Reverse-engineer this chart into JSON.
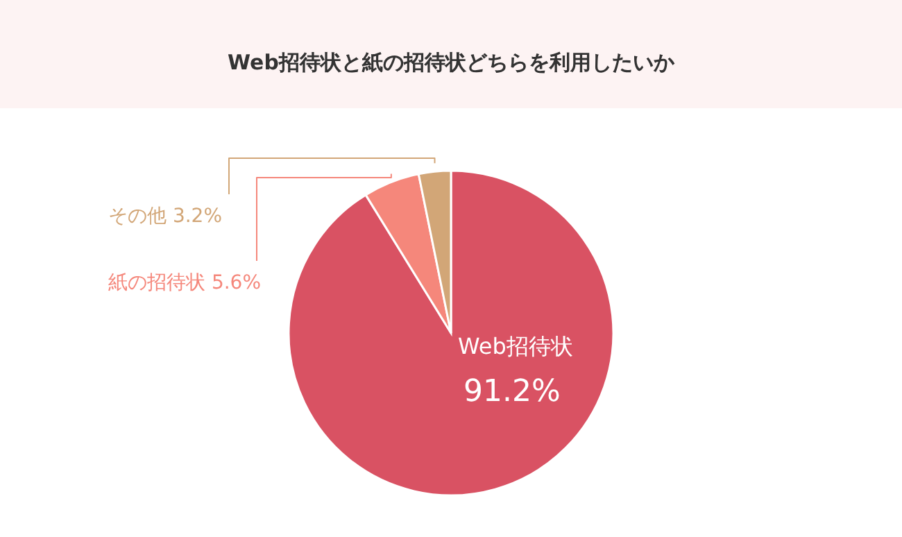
{
  "chart_data": {
    "type": "pie",
    "title": "Web招待状と紙の招待状どちらを利用したいか",
    "categories": [
      "Web招待状",
      "紙の招待状",
      "その他"
    ],
    "values": [
      91.2,
      5.6,
      3.2
    ],
    "colors": [
      "#d95263",
      "#f5877b",
      "#d2a677"
    ],
    "value_labels": [
      "91.2%",
      "5.6%",
      "3.2%"
    ]
  }
}
